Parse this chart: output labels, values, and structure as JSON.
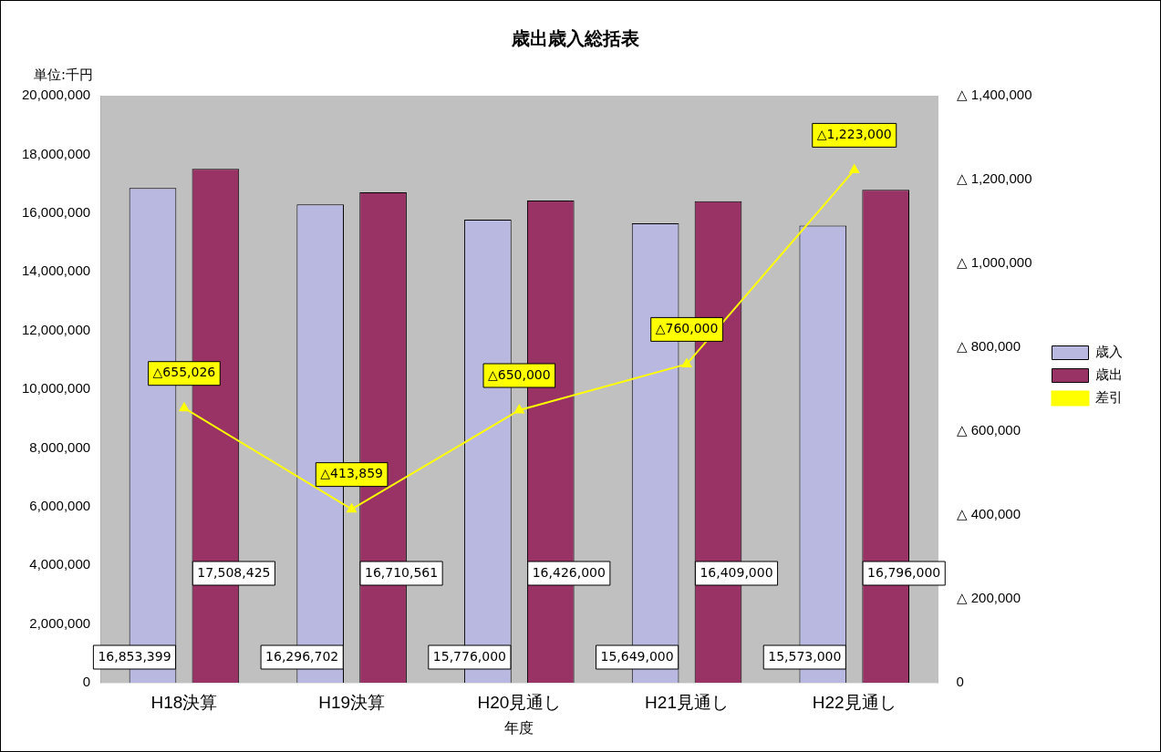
{
  "chart_data": {
    "type": "bar",
    "title": "歳出歳入総括表",
    "xlabel": "年度",
    "ylabel": "単位:千円",
    "categories": [
      "H18決算",
      "H19決算",
      "H20見通し",
      "H21見通し",
      "H22見通し"
    ],
    "series": [
      {
        "name": "歳入",
        "color": "#b8b8e0",
        "values": [
          16853399,
          16296702,
          15776000,
          15649000,
          15573000
        ],
        "value_labels": [
          "16,853,399",
          "16,296,702",
          "15,776,000",
          "15,649,000",
          "15,573,000"
        ]
      },
      {
        "name": "歳出",
        "color": "#993366",
        "values": [
          17508425,
          16710561,
          16426000,
          16409000,
          16796000
        ],
        "value_labels": [
          "17,508,425",
          "16,710,561",
          "16,426,000",
          "16,409,000",
          "16,796,000"
        ]
      },
      {
        "name": "差引",
        "type": "line",
        "axis": "y2",
        "color": "#ffff00",
        "marker": "triangle",
        "values": [
          655026,
          413859,
          650000,
          760000,
          1223000
        ],
        "value_labels": [
          "△655,026",
          "△413,859",
          "△650,000",
          "△760,000",
          "△1,223,000"
        ]
      }
    ],
    "ylim": [
      0,
      20000000
    ],
    "yticks": [
      0,
      {
        "value": 2000000,
        "label": "2,000,000"
      },
      {
        "value": 4000000,
        "label": "4,000,000"
      },
      {
        "value": 6000000,
        "label": "6,000,000"
      },
      {
        "value": 8000000,
        "label": "8,000,000"
      },
      {
        "value": 10000000,
        "label": "10,000,000"
      },
      {
        "value": 12000000,
        "label": "12,000,000"
      },
      {
        "value": 14000000,
        "label": "14,000,000"
      },
      {
        "value": 16000000,
        "label": "16,000,000"
      },
      {
        "value": 18000000,
        "label": "18,000,000"
      },
      {
        "value": 20000000,
        "label": "20,000,000"
      }
    ],
    "y2lim": [
      0,
      1400000
    ],
    "y2ticks": [
      0,
      {
        "value": 200000,
        "label": "△ 200,000"
      },
      {
        "value": 400000,
        "label": "△ 400,000"
      },
      {
        "value": 600000,
        "label": "△ 600,000"
      },
      {
        "value": 800000,
        "label": "△ 800,000"
      },
      {
        "value": 1000000,
        "label": "△ 1,000,000"
      },
      {
        "value": 1200000,
        "label": "△ 1,200,000"
      },
      {
        "value": 1400000,
        "label": "△ 1,400,000"
      }
    ],
    "legend": "right",
    "grid": false
  }
}
